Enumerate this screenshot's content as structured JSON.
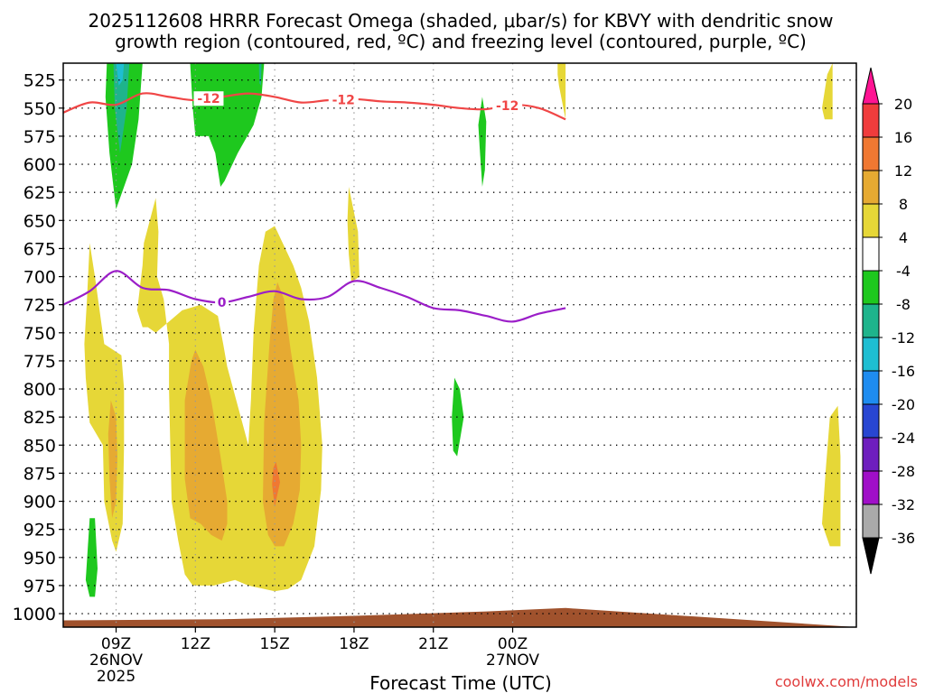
{
  "chart_data": {
    "type": "heatmap",
    "title_line1": "2025112608 HRRR Forecast Omega (shaded, μbar/s) for KBVY with dendritic snow",
    "title_line2": "growth region (contoured, red, ºC) and freezing level (contoured, purple, ºC)",
    "xlabel": "Forecast Time (UTC)",
    "watermark": "coolwx.com/models",
    "x_range_hours": [
      -1.0,
      29.0
    ],
    "y_range_hpa": [
      510,
      1012
    ],
    "y_ticks": [
      "525",
      "550",
      "575",
      "600",
      "625",
      "650",
      "675",
      "700",
      "725",
      "750",
      "775",
      "800",
      "825",
      "850",
      "875",
      "900",
      "925",
      "950",
      "975",
      "1000"
    ],
    "x_ticks": [
      {
        "hour": 1,
        "label": "09Z",
        "sub1": "26NOV",
        "sub2": "2025"
      },
      {
        "hour": 4,
        "label": "12Z",
        "sub1": "",
        "sub2": ""
      },
      {
        "hour": 7,
        "label": "15Z",
        "sub1": "",
        "sub2": ""
      },
      {
        "hour": 10,
        "label": "18Z",
        "sub1": "",
        "sub2": ""
      },
      {
        "hour": 13,
        "label": "21Z",
        "sub1": "",
        "sub2": ""
      },
      {
        "hour": 16,
        "label": "00Z",
        "sub1": "27NOV",
        "sub2": ""
      }
    ],
    "colorbar": {
      "labels": [
        "20",
        "16",
        "12",
        "8",
        "4",
        "-4",
        "-8",
        "-12",
        "-16",
        "-20",
        "-24",
        "-28",
        "-32",
        "-36"
      ],
      "bins": [
        {
          "color": "#ff1493"
        },
        {
          "color": "#f03c3c"
        },
        {
          "color": "#f07832"
        },
        {
          "color": "#e6aa32"
        },
        {
          "color": "#e6d737"
        },
        {
          "color": "#ffffff"
        },
        {
          "color": "#1ec81e"
        },
        {
          "color": "#1eb48c"
        },
        {
          "color": "#1ebed2"
        },
        {
          "color": "#1e8cf0"
        },
        {
          "color": "#2846d2"
        },
        {
          "color": "#6e1ebe"
        },
        {
          "color": "#a00fc8"
        },
        {
          "color": "#aaaaaa"
        },
        {
          "color": "#000000"
        }
      ]
    },
    "omega_regions": [
      {
        "color": "#1ec81e",
        "pts": [
          [
            0.65,
            510
          ],
          [
            2.0,
            510
          ],
          [
            1.85,
            560
          ],
          [
            1.6,
            600
          ],
          [
            1.0,
            640
          ],
          [
            0.75,
            590
          ],
          [
            0.6,
            540
          ]
        ]
      },
      {
        "color": "#1eb48c",
        "pts": [
          [
            0.9,
            510
          ],
          [
            1.5,
            510
          ],
          [
            1.4,
            550
          ],
          [
            1.15,
            590
          ],
          [
            0.95,
            550
          ]
        ]
      },
      {
        "color": "#1ebed2",
        "pts": [
          [
            1.0,
            510
          ],
          [
            1.3,
            510
          ],
          [
            1.25,
            525
          ],
          [
            1.1,
            530
          ]
        ]
      },
      {
        "color": "#1ec81e",
        "pts": [
          [
            3.8,
            510
          ],
          [
            6.6,
            510
          ],
          [
            6.5,
            540
          ],
          [
            6.2,
            565
          ],
          [
            5.6,
            590
          ],
          [
            5.1,
            615
          ],
          [
            4.95,
            620
          ],
          [
            4.75,
            590
          ],
          [
            4.5,
            575
          ],
          [
            4.0,
            575
          ],
          [
            3.9,
            550
          ]
        ]
      },
      {
        "color": "#1eb48c",
        "pts": [
          [
            6.4,
            510
          ],
          [
            6.5,
            510
          ],
          [
            6.48,
            530
          ],
          [
            6.42,
            528
          ]
        ]
      },
      {
        "color": "#1ec81e",
        "pts": [
          [
            14.85,
            540
          ],
          [
            15.0,
            562
          ],
          [
            14.95,
            605
          ],
          [
            14.85,
            620
          ],
          [
            14.75,
            585
          ],
          [
            14.7,
            565
          ]
        ]
      },
      {
        "color": "#1ec81e",
        "pts": [
          [
            13.8,
            790
          ],
          [
            14.0,
            800
          ],
          [
            14.15,
            825
          ],
          [
            13.9,
            860
          ],
          [
            13.75,
            855
          ],
          [
            13.7,
            825
          ]
        ]
      },
      {
        "color": "#1ec81e",
        "pts": [
          [
            0.0,
            915
          ],
          [
            0.2,
            915
          ],
          [
            0.3,
            960
          ],
          [
            0.2,
            985
          ],
          [
            0.0,
            985
          ],
          [
            -0.15,
            970
          ]
        ]
      },
      {
        "color": "#e6d737",
        "pts": [
          [
            17.7,
            510
          ],
          [
            18.0,
            510
          ],
          [
            18.0,
            560
          ],
          [
            17.75,
            530
          ],
          [
            17.7,
            520
          ]
        ]
      },
      {
        "color": "#e6d737",
        "pts": [
          [
            9.8,
            620
          ],
          [
            10.15,
            660
          ],
          [
            10.2,
            700
          ],
          [
            9.9,
            705
          ],
          [
            9.8,
            680
          ],
          [
            9.75,
            650
          ]
        ]
      },
      {
        "color": "#e6d737",
        "pts": [
          [
            -0.2,
            760
          ],
          [
            -0.1,
            720
          ],
          [
            0.0,
            670
          ],
          [
            0.2,
            700
          ],
          [
            0.55,
            760
          ],
          [
            1.2,
            770
          ],
          [
            1.3,
            800
          ],
          [
            1.3,
            850
          ],
          [
            1.25,
            920
          ],
          [
            1.0,
            945
          ],
          [
            0.85,
            935
          ],
          [
            0.55,
            900
          ],
          [
            0.5,
            850
          ],
          [
            0.0,
            830
          ],
          [
            -0.15,
            790
          ]
        ]
      },
      {
        "color": "#e6d737",
        "pts": [
          [
            1.8,
            730
          ],
          [
            2.0,
            690
          ],
          [
            2.05,
            670
          ],
          [
            2.5,
            630
          ],
          [
            2.6,
            660
          ],
          [
            2.55,
            700
          ],
          [
            2.8,
            720
          ],
          [
            3.0,
            760
          ],
          [
            3.0,
            800
          ],
          [
            3.05,
            850
          ],
          [
            3.1,
            900
          ],
          [
            3.35,
            935
          ],
          [
            3.6,
            965
          ],
          [
            3.9,
            975
          ],
          [
            4.7,
            975
          ],
          [
            5.5,
            970
          ],
          [
            6.0,
            975
          ],
          [
            7.0,
            980
          ],
          [
            7.5,
            978
          ],
          [
            8.0,
            970
          ],
          [
            8.5,
            940
          ],
          [
            8.75,
            890
          ],
          [
            8.8,
            850
          ],
          [
            8.6,
            790
          ],
          [
            8.3,
            740
          ],
          [
            8.0,
            710
          ],
          [
            7.7,
            690
          ],
          [
            7.3,
            670
          ],
          [
            7.0,
            655
          ],
          [
            6.65,
            660
          ],
          [
            6.4,
            690
          ],
          [
            6.2,
            750
          ],
          [
            6.1,
            810
          ],
          [
            6.0,
            850
          ],
          [
            5.6,
            815
          ],
          [
            5.2,
            780
          ],
          [
            5.05,
            760
          ],
          [
            4.85,
            735
          ],
          [
            4.2,
            725
          ],
          [
            3.5,
            730
          ],
          [
            3.0,
            740
          ],
          [
            2.5,
            750
          ],
          [
            2.2,
            745
          ],
          [
            2.0,
            745
          ]
        ]
      },
      {
        "color": "#e6d737",
        "pts": [
          [
            28.0,
            825
          ],
          [
            28.3,
            815
          ],
          [
            28.4,
            860
          ],
          [
            28.4,
            940
          ],
          [
            28.0,
            940
          ],
          [
            27.7,
            920
          ],
          [
            27.85,
            870
          ]
        ]
      },
      {
        "color": "#e6d737",
        "pts": [
          [
            27.7,
            550
          ],
          [
            27.9,
            520
          ],
          [
            28.1,
            510
          ],
          [
            28.1,
            560
          ],
          [
            27.8,
            560
          ]
        ]
      },
      {
        "color": "#e6aa32",
        "pts": [
          [
            0.8,
            810
          ],
          [
            1.0,
            825
          ],
          [
            1.05,
            860
          ],
          [
            1.0,
            900
          ],
          [
            0.85,
            915
          ],
          [
            0.75,
            880
          ],
          [
            0.7,
            840
          ]
        ]
      },
      {
        "color": "#e6aa32",
        "pts": [
          [
            3.6,
            810
          ],
          [
            3.85,
            775
          ],
          [
            4.0,
            765
          ],
          [
            4.3,
            780
          ],
          [
            4.6,
            810
          ],
          [
            4.95,
            860
          ],
          [
            5.2,
            900
          ],
          [
            5.2,
            920
          ],
          [
            5.0,
            935
          ],
          [
            4.6,
            930
          ],
          [
            4.2,
            920
          ],
          [
            3.8,
            915
          ],
          [
            3.6,
            880
          ]
        ]
      },
      {
        "color": "#e6aa32",
        "pts": [
          [
            6.6,
            830
          ],
          [
            6.8,
            760
          ],
          [
            6.95,
            720
          ],
          [
            7.1,
            705
          ],
          [
            7.35,
            720
          ],
          [
            7.6,
            765
          ],
          [
            7.9,
            810
          ],
          [
            8.0,
            850
          ],
          [
            7.95,
            890
          ],
          [
            7.7,
            920
          ],
          [
            7.35,
            940
          ],
          [
            7.0,
            940
          ],
          [
            6.75,
            930
          ],
          [
            6.55,
            900
          ]
        ]
      },
      {
        "color": "#f07832",
        "pts": [
          [
            6.95,
            870
          ],
          [
            7.05,
            865
          ],
          [
            7.2,
            883
          ],
          [
            7.0,
            905
          ],
          [
            6.9,
            885
          ]
        ]
      }
    ],
    "dgz_contour": {
      "label": "-12",
      "color": "#f04646",
      "label_positions": [
        4.5,
        9.6,
        15.8
      ],
      "points": [
        [
          -1.0,
          554
        ],
        [
          0.0,
          545
        ],
        [
          1.0,
          547
        ],
        [
          2.0,
          537
        ],
        [
          3.0,
          540
        ],
        [
          4.0,
          543
        ],
        [
          5.0,
          540
        ],
        [
          6.0,
          537
        ],
        [
          7.0,
          540
        ],
        [
          8.0,
          545
        ],
        [
          9.0,
          543
        ],
        [
          10.0,
          542
        ],
        [
          11.0,
          544
        ],
        [
          12.0,
          545
        ],
        [
          13.0,
          547
        ],
        [
          14.0,
          550
        ],
        [
          15.0,
          551
        ],
        [
          16.0,
          547
        ],
        [
          17.0,
          550
        ],
        [
          18.0,
          560
        ]
      ]
    },
    "freezing_contour": {
      "label": "0",
      "color": "#9b1ec8",
      "label_positions": [
        5.0
      ],
      "points": [
        [
          -1.0,
          725
        ],
        [
          0.0,
          713
        ],
        [
          1.0,
          695
        ],
        [
          2.0,
          710
        ],
        [
          3.0,
          712
        ],
        [
          4.0,
          720
        ],
        [
          5.0,
          723
        ],
        [
          6.0,
          718
        ],
        [
          7.0,
          713
        ],
        [
          8.0,
          720
        ],
        [
          9.0,
          718
        ],
        [
          10.0,
          704
        ],
        [
          11.0,
          710
        ],
        [
          12.0,
          718
        ],
        [
          13.0,
          728
        ],
        [
          14.0,
          730
        ],
        [
          15.0,
          735
        ],
        [
          16.0,
          740
        ],
        [
          17.0,
          733
        ],
        [
          18.0,
          728
        ]
      ]
    },
    "terrain": {
      "color": "#a0522d",
      "top_hpa": [
        [
          -1.0,
          1006
        ],
        [
          5.0,
          1005
        ],
        [
          10.0,
          1002
        ],
        [
          15.0,
          998
        ],
        [
          18.0,
          995
        ]
      ]
    }
  }
}
